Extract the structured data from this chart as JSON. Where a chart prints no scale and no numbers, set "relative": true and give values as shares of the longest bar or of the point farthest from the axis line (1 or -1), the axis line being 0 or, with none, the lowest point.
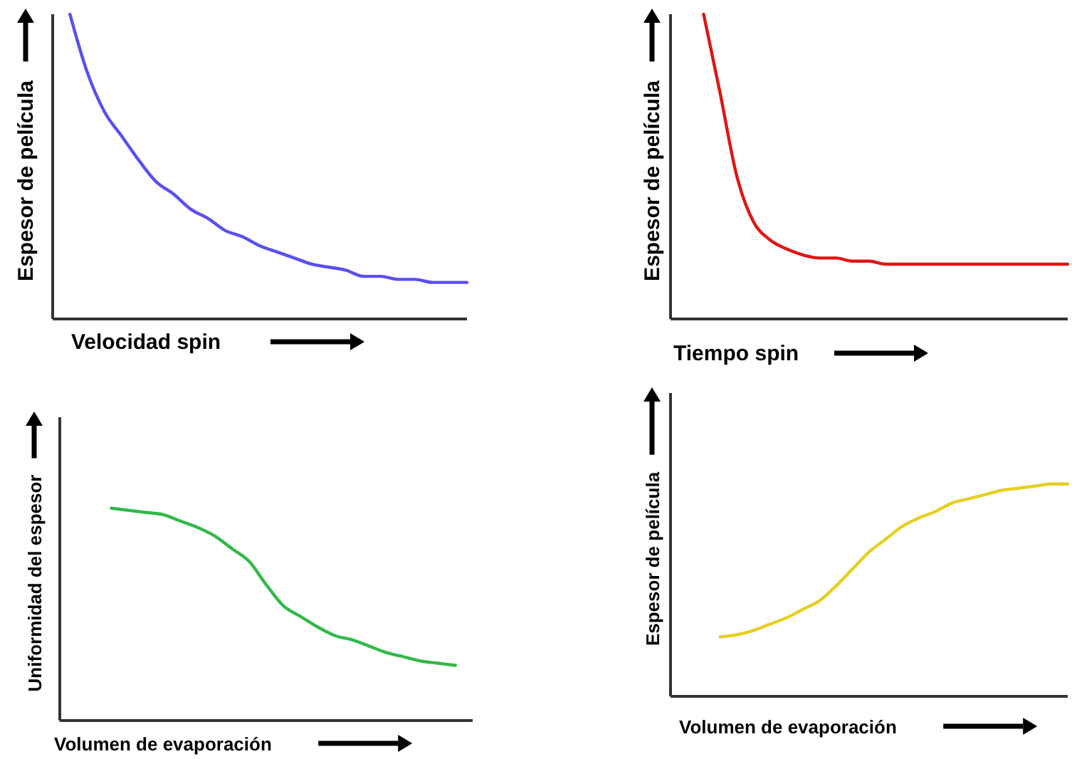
{
  "chart_data": [
    {
      "type": "line",
      "relative": true,
      "xlabel": "Velocidad spin",
      "ylabel": "Espesor de película",
      "categories": [
        null,
        null,
        null,
        null,
        null,
        null,
        null,
        null,
        null,
        null,
        null,
        null,
        null,
        null,
        null,
        null,
        null,
        null,
        null,
        null,
        null,
        null,
        null,
        null,
        null
      ],
      "series": [
        {
          "color": "#5a4ff0",
          "values": [
            null,
            1.0,
            0.81,
            0.68,
            0.6,
            0.52,
            0.45,
            0.41,
            0.36,
            0.33,
            0.29,
            0.27,
            0.24,
            0.22,
            0.2,
            0.18,
            0.17,
            0.16,
            0.14,
            0.14,
            0.13,
            0.13,
            0.12,
            0.12,
            0.12
          ]
        }
      ]
    },
    {
      "type": "line",
      "relative": true,
      "xlabel": "Tiempo spin",
      "ylabel": "Espesor de película",
      "categories": [
        null,
        null,
        null,
        null,
        null,
        null,
        null,
        null,
        null,
        null,
        null,
        null,
        null,
        null,
        null,
        null,
        null,
        null,
        null,
        null,
        null,
        null,
        null,
        null,
        null
      ],
      "series": [
        {
          "color": "#e01515",
          "values": [
            null,
            null,
            1.0,
            0.74,
            0.47,
            0.32,
            0.26,
            0.23,
            0.21,
            0.2,
            0.2,
            0.19,
            0.19,
            0.18,
            0.18,
            0.18,
            0.18,
            0.18,
            0.18,
            0.18,
            0.18,
            0.18,
            0.18,
            0.18,
            0.18
          ]
        }
      ]
    },
    {
      "type": "line",
      "relative": true,
      "xlabel": "Volumen de evaporación",
      "ylabel": "Uniformidad del espesor",
      "categories": [
        null,
        null,
        null,
        null,
        null,
        null,
        null,
        null,
        null,
        null,
        null,
        null,
        null,
        null,
        null,
        null,
        null,
        null,
        null,
        null,
        null,
        null,
        null,
        null,
        null
      ],
      "series": [
        {
          "color": "#33b84a",
          "values": [
            null,
            null,
            null,
            1.0,
            0.99,
            0.98,
            0.97,
            0.94,
            0.91,
            0.87,
            0.81,
            0.75,
            0.64,
            0.54,
            0.49,
            0.44,
            0.4,
            0.38,
            0.35,
            0.32,
            0.3,
            0.28,
            0.27,
            0.26,
            null
          ]
        }
      ]
    },
    {
      "type": "line",
      "relative": true,
      "xlabel": "Volumen de evaporación",
      "ylabel": "Espesor de película",
      "categories": [
        null,
        null,
        null,
        null,
        null,
        null,
        null,
        null,
        null,
        null,
        null,
        null,
        null,
        null,
        null,
        null,
        null,
        null,
        null,
        null,
        null,
        null,
        null,
        null,
        null
      ],
      "series": [
        {
          "color": "#e6cf22",
          "values": [
            null,
            null,
            null,
            0.28,
            0.29,
            0.31,
            0.34,
            0.37,
            0.41,
            0.45,
            0.52,
            0.6,
            0.68,
            0.74,
            0.8,
            0.84,
            0.87,
            0.91,
            0.93,
            0.95,
            0.97,
            0.98,
            0.99,
            1.0,
            1.0
          ]
        }
      ]
    }
  ]
}
